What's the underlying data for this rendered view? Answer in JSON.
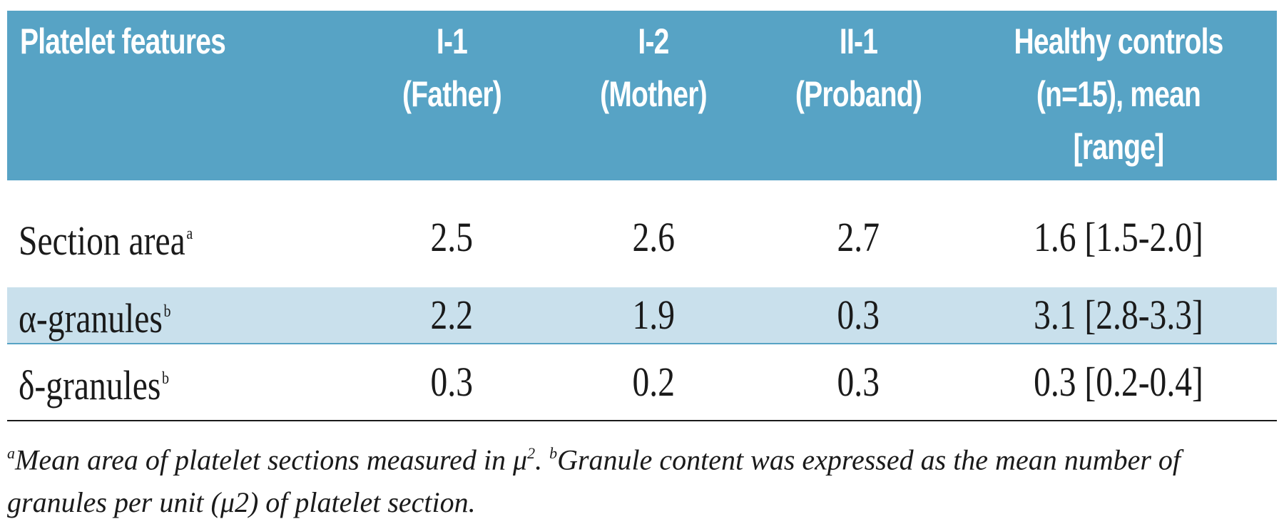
{
  "table": {
    "headers": [
      [
        "Platelet features"
      ],
      [
        "I-1",
        "(Father)"
      ],
      [
        "I-2",
        "(Mother)"
      ],
      [
        "II-1",
        "(Proband)"
      ],
      [
        "Healthy controls",
        "(n=15), mean",
        "[range]"
      ]
    ],
    "rows": [
      {
        "feature": "Section area",
        "sup": "a",
        "values": [
          "2.5",
          "2.6",
          "2.7",
          "1.6 [1.5-2.0]"
        ]
      },
      {
        "feature": "α-granules",
        "sup": "b",
        "values": [
          "2.2",
          "1.9",
          "0.3",
          "3.1 [2.8-3.3]"
        ]
      },
      {
        "feature": "δ-granules",
        "sup": "b",
        "values": [
          "0.3",
          "0.2",
          "0.3",
          "0.3 [0.2-0.4]"
        ]
      }
    ]
  },
  "footnote": {
    "a_mark": "a",
    "a_text_1": "Mean area of platelet sections measured in μ",
    "a_unit_sup": "2",
    "a_text_2": ". ",
    "b_mark": "b",
    "b_text": "Granule content was expressed as the mean number of granules per unit (μ2) of platelet section."
  },
  "colors": {
    "header_bg": "#57a3c5",
    "highlight_row_bg": "#c9e0ec",
    "header_text": "#ffffff"
  }
}
